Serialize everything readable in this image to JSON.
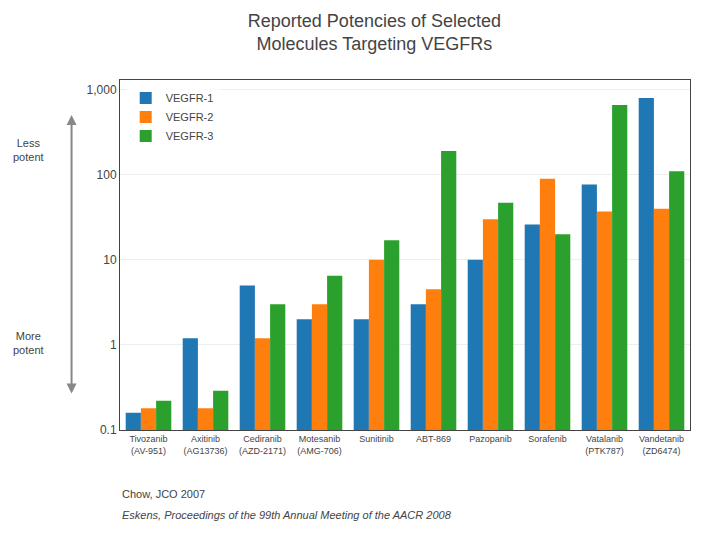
{
  "chart_data": {
    "type": "bar",
    "title": "Reported Potencies of Selected\nMolecules Targeting VEGFRs",
    "categories": [
      "Tivozanib\n(AV-951)",
      "Axitinib\n(AG13736)",
      "Cediranib\n(AZD-2171)",
      "Motesanib\n(AMG-706)",
      "Sunitinib",
      "ABT-869",
      "Pazopanib",
      "Sorafenib",
      "Vatalanib\n(PTK787)",
      "Vandetanib\n(ZD6474)"
    ],
    "series": [
      {
        "name": "VEGFR-1",
        "values": [
          0.16,
          1.2,
          5.0,
          2.0,
          2.0,
          3.0,
          10.0,
          26.0,
          77.0,
          800.0
        ]
      },
      {
        "name": "VEGFR-2",
        "values": [
          0.18,
          0.18,
          1.2,
          3.0,
          10.0,
          4.5,
          30.0,
          90.0,
          37.0,
          40.0
        ]
      },
      {
        "name": "VEGFR-3",
        "values": [
          0.22,
          0.29,
          3.0,
          6.5,
          17.0,
          190.0,
          47.0,
          20.0,
          660.0,
          110.0
        ]
      }
    ],
    "log": "y",
    "ylim": [
      0.1,
      1300
    ],
    "yticks": [
      0.1,
      1,
      10,
      100,
      {
        "value": 1000,
        "label": "1,000"
      }
    ],
    "grid": true,
    "legend": "upper left",
    "annotations": [
      "Less\npotent",
      "More\npotent",
      "Chow, JCO 2007",
      "Eskens, Proceedings of the 99th Annual Meeting of the AACR 2008"
    ]
  }
}
